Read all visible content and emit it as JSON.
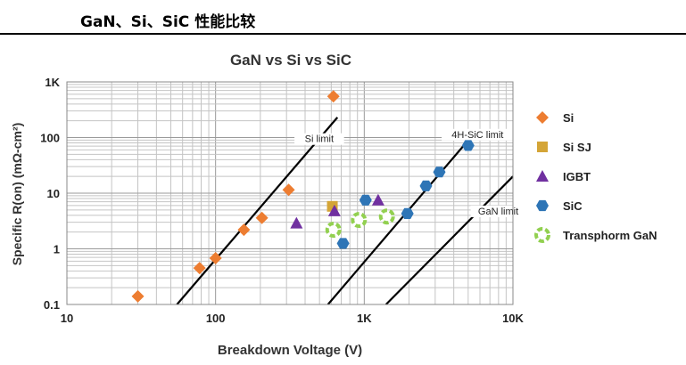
{
  "header": {
    "title": "GaN、Si、SiC 性能比较"
  },
  "chart_data": {
    "type": "scatter",
    "title": "GaN vs Si vs SiC",
    "xlabel": "Breakdown Voltage (V)",
    "ylabel": "Specific R(on) (mΩ-cm²)",
    "x_scale": "log",
    "y_scale": "log",
    "xlim": [
      10,
      10000
    ],
    "ylim": [
      0.1,
      1000
    ],
    "x_ticks": [
      10,
      100,
      1000,
      10000
    ],
    "x_tick_labels": [
      "10",
      "100",
      "1K",
      "10K"
    ],
    "y_ticks": [
      0.1,
      1,
      10,
      100,
      1000
    ],
    "y_tick_labels": [
      "0.1",
      "1",
      "10",
      "100",
      "1K"
    ],
    "grid": true,
    "legend_position": "right",
    "series": [
      {
        "name": "Si",
        "marker": "diamond",
        "color": "#ED7D31",
        "points": [
          [
            30,
            0.14
          ],
          [
            78,
            0.45
          ],
          [
            100,
            0.68
          ],
          [
            155,
            2.2
          ],
          [
            205,
            3.6
          ],
          [
            310,
            11.5
          ],
          [
            620,
            550
          ]
        ]
      },
      {
        "name": "Si SJ",
        "marker": "square",
        "color": "#D4A537",
        "points": [
          [
            610,
            5.8
          ]
        ]
      },
      {
        "name": "IGBT",
        "marker": "triangle",
        "color": "#7030A0",
        "points": [
          [
            350,
            2.9
          ],
          [
            630,
            4.8
          ],
          [
            1240,
            7.5
          ]
        ]
      },
      {
        "name": "SiC",
        "marker": "hexagon",
        "color": "#2E75B6",
        "points": [
          [
            720,
            1.25
          ],
          [
            1020,
            7.5
          ],
          [
            1950,
            4.3
          ],
          [
            2600,
            13.5
          ],
          [
            3200,
            24
          ],
          [
            5000,
            72
          ]
        ]
      },
      {
        "name": "Transphorm GaN",
        "marker": "ring",
        "color": "#92D050",
        "points": [
          [
            620,
            2.2
          ],
          [
            920,
            3.3
          ],
          [
            1420,
            3.8
          ]
        ]
      }
    ],
    "limit_lines": [
      {
        "name": "Si limit",
        "from": [
          55,
          0.1
        ],
        "to": [
          660,
          230
        ]
      },
      {
        "name": "4H-SiC limit",
        "from": [
          570,
          0.1
        ],
        "to": [
          5500,
          120
        ]
      },
      {
        "name": "GaN limit",
        "from": [
          1400,
          0.1
        ],
        "to": [
          10000,
          20
        ]
      }
    ]
  }
}
